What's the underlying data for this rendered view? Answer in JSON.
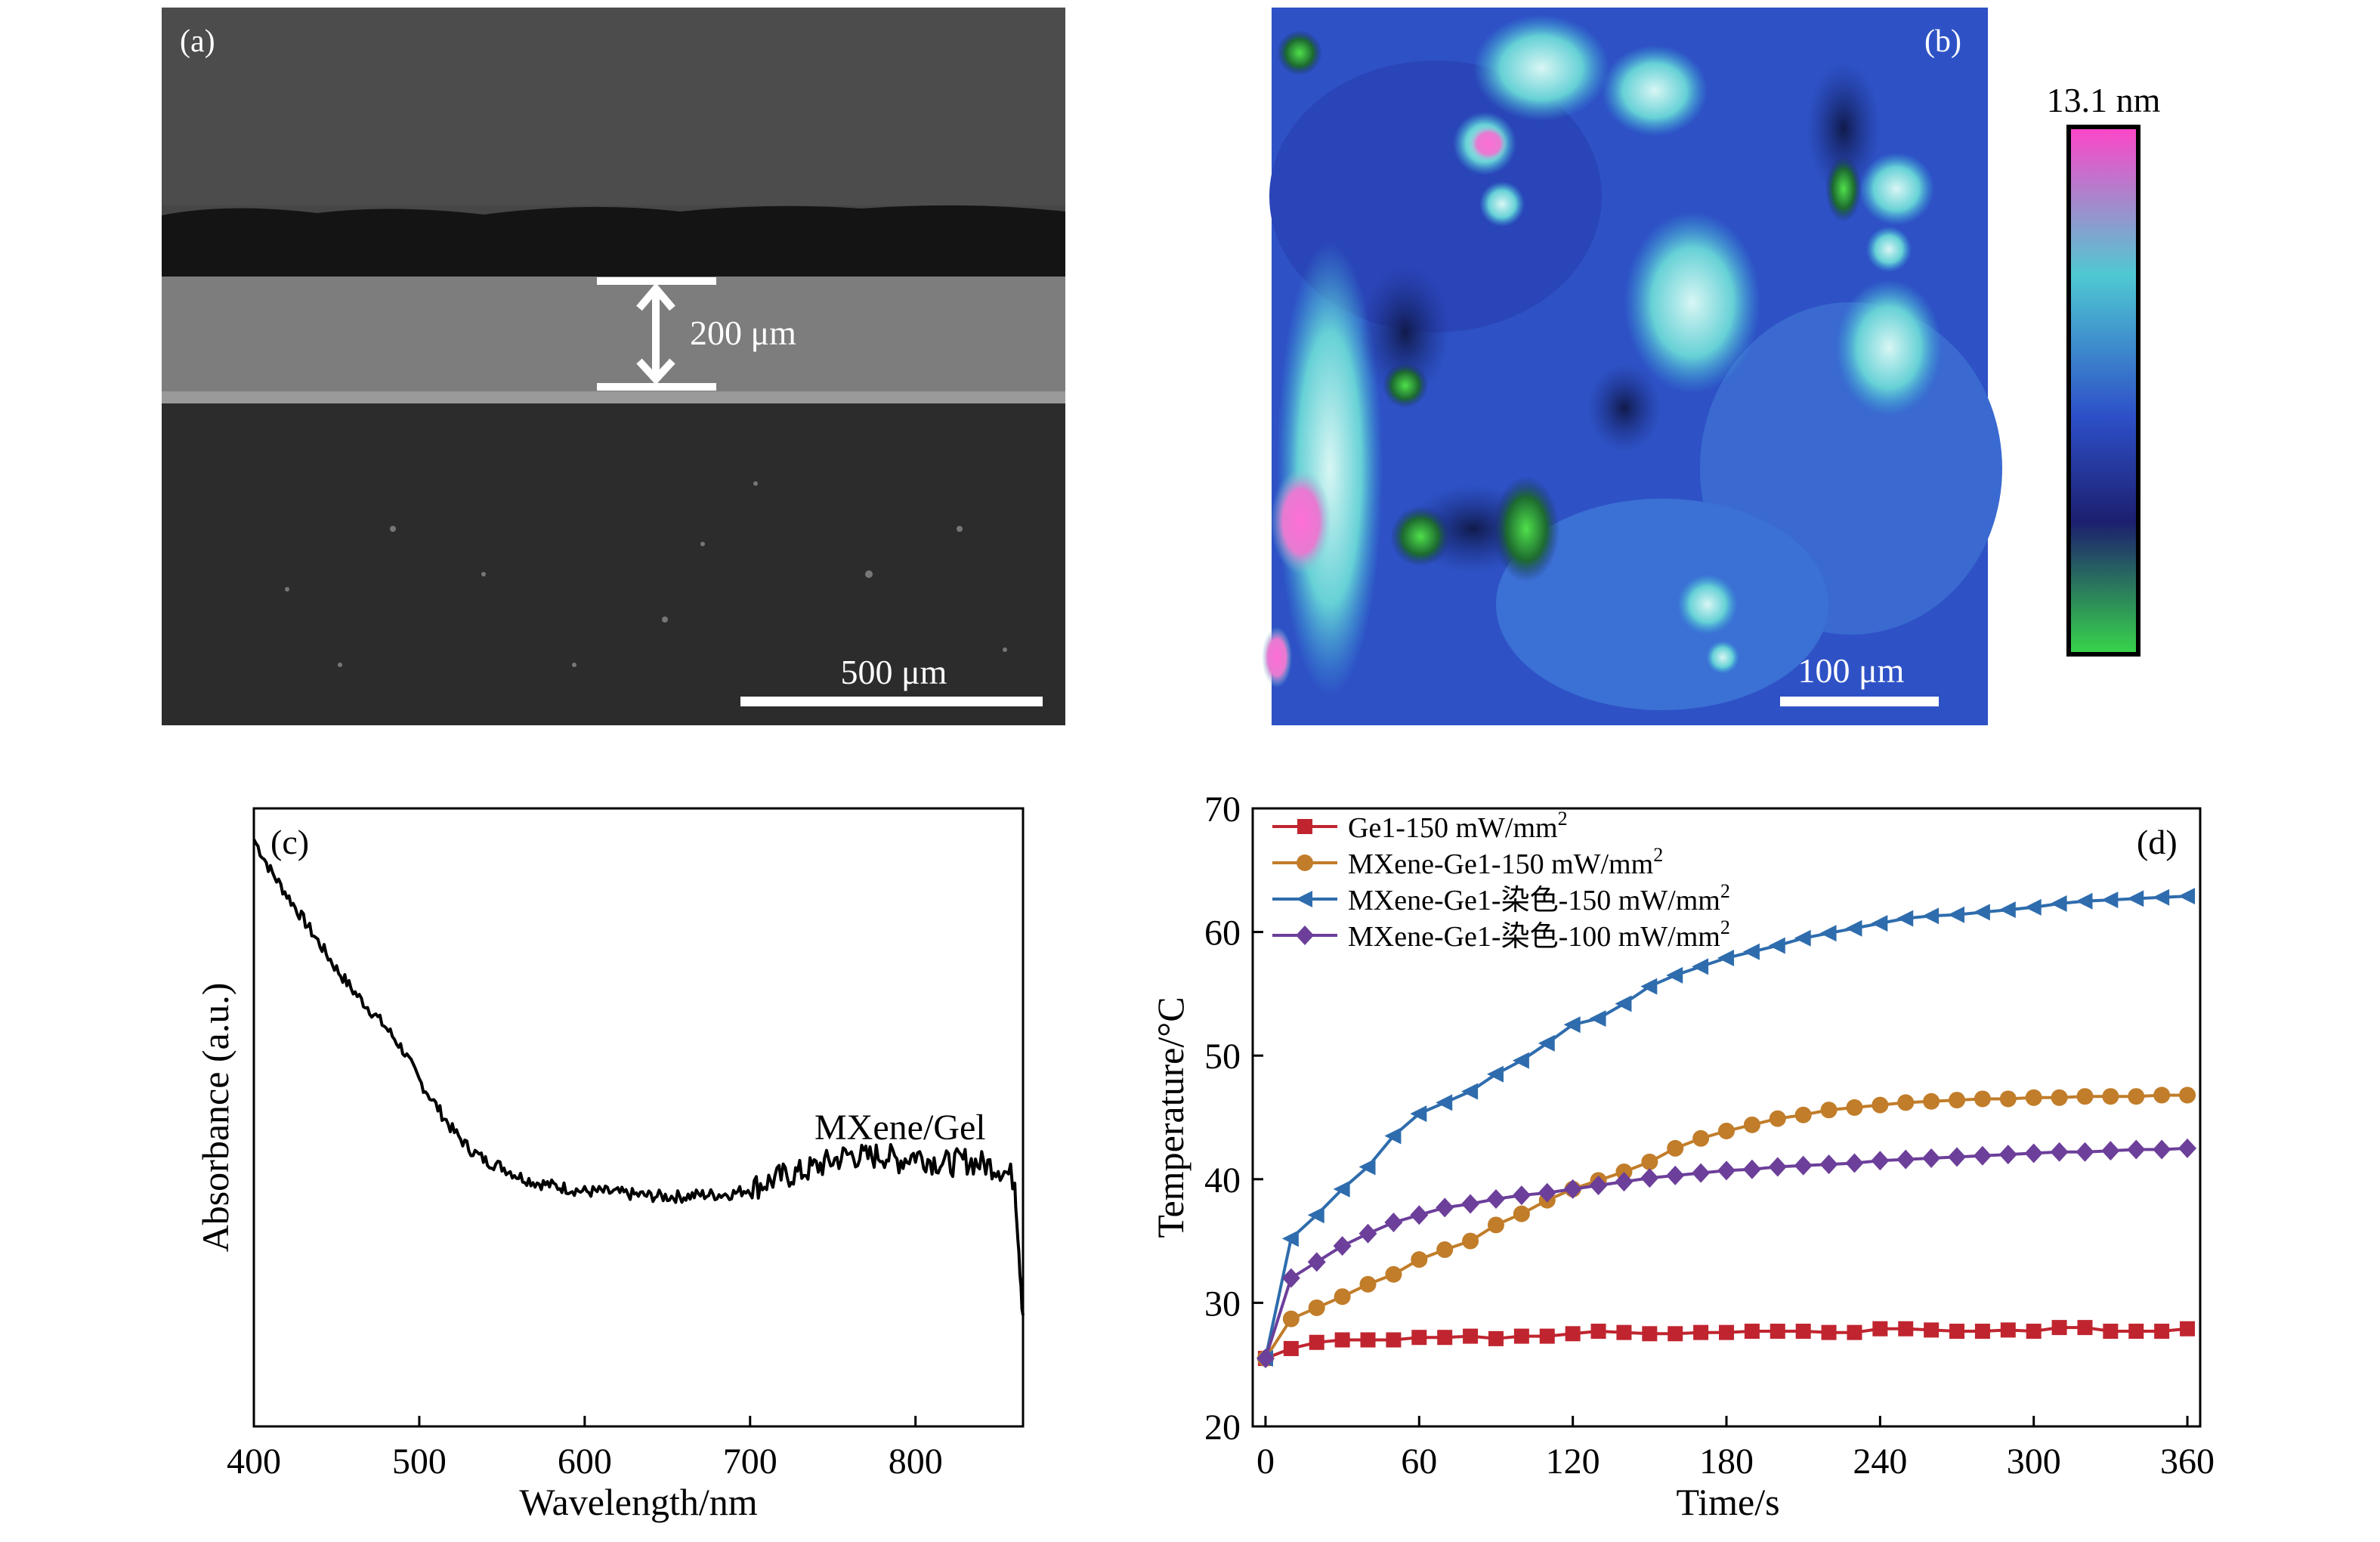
{
  "panel_a": {
    "label": "(a)",
    "thickness_label": "200 μm",
    "scale_label": "500 μm"
  },
  "panel_b": {
    "label": "(b)",
    "scale_label": "100 μm",
    "colorbar_max_label": "13.1 nm",
    "colorbar_colors": [
      "#ff45c8",
      "#4fc9d2",
      "#2d4fc8",
      "#1c1f6e",
      "#38d64b"
    ]
  },
  "chart_data": [
    {
      "panel": "c",
      "type": "line",
      "label": "(c)",
      "xlabel": "Wavelength/nm",
      "ylabel": "Absorbance (a.u.)",
      "xlim": [
        400,
        865
      ],
      "ylim": [
        0,
        1
      ],
      "xticks": [
        400,
        500,
        600,
        700,
        800
      ],
      "yticks": [],
      "annotation": "MXene/Gel",
      "series": [
        {
          "name": "MXene/Gel",
          "color": "#000000",
          "x": [
            400,
            410,
            420,
            430,
            440,
            450,
            460,
            470,
            480,
            490,
            500,
            510,
            520,
            530,
            540,
            550,
            560,
            570,
            580,
            590,
            600,
            610,
            620,
            630,
            640,
            650,
            660,
            670,
            680,
            690,
            700,
            710,
            720,
            730,
            740,
            750,
            760,
            770,
            780,
            790,
            800,
            810,
            820,
            830,
            840,
            850,
            860,
            865
          ],
          "y": [
            0.95,
            0.9,
            0.86,
            0.82,
            0.78,
            0.74,
            0.705,
            0.675,
            0.645,
            0.61,
            0.56,
            0.52,
            0.48,
            0.45,
            0.43,
            0.42,
            0.405,
            0.395,
            0.39,
            0.385,
            0.38,
            0.38,
            0.378,
            0.375,
            0.373,
            0.372,
            0.372,
            0.375,
            0.375,
            0.377,
            0.385,
            0.395,
            0.405,
            0.41,
            0.42,
            0.43,
            0.44,
            0.435,
            0.44,
            0.43,
            0.44,
            0.43,
            0.425,
            0.43,
            0.425,
            0.42,
            0.4,
            0.18
          ]
        }
      ]
    },
    {
      "panel": "d",
      "type": "line",
      "label": "(d)",
      "xlabel": "Time/s",
      "ylabel": "Temperature/°C",
      "xlim": [
        -5,
        365
      ],
      "ylim": [
        20,
        70
      ],
      "xticks": [
        0,
        60,
        120,
        180,
        240,
        300,
        360
      ],
      "yticks": [
        20,
        30,
        40,
        50,
        60,
        70
      ],
      "x": [
        0,
        10,
        20,
        30,
        40,
        50,
        60,
        70,
        80,
        90,
        100,
        110,
        120,
        130,
        140,
        150,
        160,
        170,
        180,
        190,
        200,
        210,
        220,
        230,
        240,
        250,
        260,
        270,
        280,
        290,
        300,
        310,
        320,
        330,
        340,
        350,
        360
      ],
      "series": [
        {
          "name": "Ge1-150 mW/mm",
          "sup": "2",
          "color": "#c0252f",
          "marker": "square",
          "values": [
            25.5,
            26.3,
            26.8,
            27.0,
            27.0,
            27.0,
            27.2,
            27.2,
            27.3,
            27.1,
            27.3,
            27.3,
            27.5,
            27.7,
            27.6,
            27.5,
            27.5,
            27.6,
            27.6,
            27.7,
            27.7,
            27.7,
            27.6,
            27.6,
            27.9,
            27.9,
            27.8,
            27.7,
            27.7,
            27.8,
            27.7,
            28.0,
            28.0,
            27.7,
            27.7,
            27.7,
            27.9
          ]
        },
        {
          "name": "MXene-Ge1-150 mW/mm",
          "sup": "2",
          "color": "#c17d2a",
          "marker": "circle",
          "values": [
            25.5,
            28.7,
            29.6,
            30.5,
            31.5,
            32.3,
            33.5,
            34.3,
            35.0,
            36.3,
            37.2,
            38.3,
            39.2,
            39.9,
            40.6,
            41.4,
            42.5,
            43.3,
            43.9,
            44.4,
            44.9,
            45.2,
            45.6,
            45.8,
            46.0,
            46.2,
            46.3,
            46.4,
            46.5,
            46.5,
            46.6,
            46.6,
            46.7,
            46.7,
            46.7,
            46.8,
            46.8
          ]
        },
        {
          "name": "MXene-Ge1-染色-150 mW/mm",
          "sup": "2",
          "color": "#2e6cad",
          "marker": "triangle-left",
          "values": [
            25.5,
            35.2,
            37.1,
            39.2,
            41.0,
            43.5,
            45.3,
            46.2,
            47.1,
            48.5,
            49.6,
            51.0,
            52.5,
            53.0,
            54.2,
            55.6,
            56.5,
            57.2,
            57.9,
            58.4,
            58.9,
            59.5,
            59.9,
            60.3,
            60.7,
            61.1,
            61.3,
            61.4,
            61.6,
            61.8,
            62.0,
            62.3,
            62.5,
            62.6,
            62.7,
            62.8,
            62.9
          ]
        },
        {
          "name": "MXene-Ge1-染色-100 mW/mm",
          "sup": "2",
          "color": "#6c3f9a",
          "marker": "diamond",
          "values": [
            25.5,
            32.0,
            33.3,
            34.6,
            35.6,
            36.5,
            37.1,
            37.7,
            38.0,
            38.4,
            38.7,
            38.9,
            39.2,
            39.5,
            39.8,
            40.1,
            40.3,
            40.5,
            40.7,
            40.8,
            41.0,
            41.1,
            41.2,
            41.3,
            41.5,
            41.6,
            41.7,
            41.8,
            41.9,
            42.0,
            42.1,
            42.2,
            42.2,
            42.3,
            42.4,
            42.4,
            42.5
          ]
        }
      ]
    }
  ]
}
